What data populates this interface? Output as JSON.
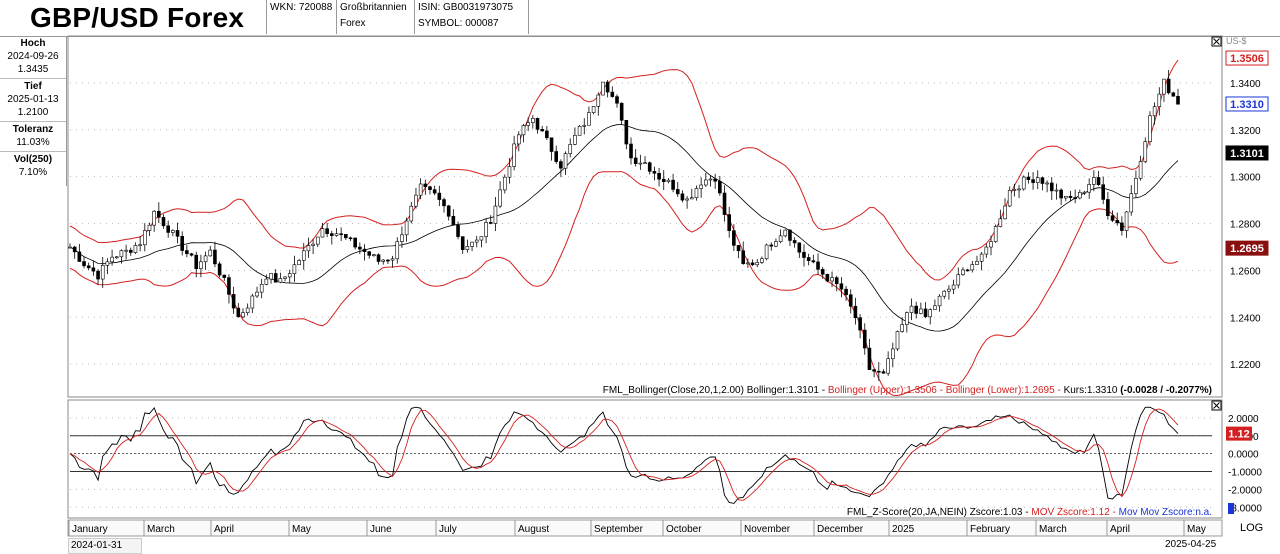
{
  "header": {
    "title": "GBP/USD Forex",
    "wkn": "WKN: 720088",
    "country": "Großbritannien",
    "type": "Forex",
    "isin": "ISIN: GB0031973075",
    "symbol": "SYMBOL: 000087"
  },
  "sidebar": {
    "hoch_label": "Hoch",
    "hoch_date": "2024-09-26",
    "hoch_value": "1.3435",
    "tief_label": "Tief",
    "tief_date": "2025-01-13",
    "tief_value": "1.2100",
    "toleranz_label": "Toleranz",
    "toleranz_value": "11.03%",
    "vol_label": "Vol(250)",
    "vol_value": "7.10%"
  },
  "main_legend": {
    "part1": "FML_Bollinger(Close,20,1,2.00) Bollinger:1.3101 -",
    "part2": "Bollinger (Upper):1.3506 -",
    "part3": "Bollinger (Lower):1.2695 -",
    "part4": "Kurs:1.3310 ",
    "part5": "(-0.0028 / -0.2077%)"
  },
  "sub_legend": {
    "part1": "FML_Z-Score(20,JA,NEIN) Zscore:1.03 -",
    "part2": "MOV Zscore:1.12 -",
    "part3": "Mov Mov Zscore:n.a."
  },
  "footer": {
    "start_date": "2024-01-31",
    "end_date": "2025-04-25",
    "log_label": "LOG"
  },
  "colors": {
    "candles": "#000000",
    "bands": "#d42020",
    "middle": "#000000",
    "blue_tag": "#1a35d8",
    "dark_red_tag": "#8a1010"
  },
  "chart_data": [
    {
      "type": "line",
      "title": "GBP/USD Forex",
      "x_axis_labels": [
        "January",
        "March",
        "April",
        "May",
        "June",
        "July",
        "August",
        "September",
        "October",
        "November",
        "December",
        "2025",
        "February",
        "March",
        "April",
        "May"
      ],
      "ytick_labels": [
        "1.3400",
        "1.3200",
        "1.3000",
        "1.2800",
        "1.2600",
        "1.2400",
        "1.2200"
      ],
      "ylim": [
        1.206,
        1.36
      ],
      "price_tags": [
        {
          "label": "1.3506",
          "value": 1.3506,
          "style": "red"
        },
        {
          "label": "1.3310",
          "value": 1.331,
          "style": "blue"
        },
        {
          "label": "1.3101",
          "value": 1.3101,
          "style": "black"
        },
        {
          "label": "1.2695",
          "value": 1.2695,
          "style": "darkred"
        }
      ],
      "close_anchors": [
        [
          0,
          1.27
        ],
        [
          3,
          1.263
        ],
        [
          6,
          1.258
        ],
        [
          9,
          1.266
        ],
        [
          12,
          1.268
        ],
        [
          15,
          1.272
        ],
        [
          18,
          1.285
        ],
        [
          21,
          1.278
        ],
        [
          24,
          1.27
        ],
        [
          27,
          1.262
        ],
        [
          30,
          1.268
        ],
        [
          33,
          1.255
        ],
        [
          36,
          1.24
        ],
        [
          39,
          1.248
        ],
        [
          42,
          1.258
        ],
        [
          45,
          1.255
        ],
        [
          48,
          1.262
        ],
        [
          51,
          1.27
        ],
        [
          54,
          1.278
        ],
        [
          57,
          1.276
        ],
        [
          60,
          1.272
        ],
        [
          63,
          1.268
        ],
        [
          66,
          1.264
        ],
        [
          69,
          1.266
        ],
        [
          72,
          1.282
        ],
        [
          75,
          1.295
        ],
        [
          78,
          1.292
        ],
        [
          81,
          1.285
        ],
        [
          84,
          1.27
        ],
        [
          87,
          1.272
        ],
        [
          90,
          1.282
        ],
        [
          93,
          1.3
        ],
        [
          96,
          1.318
        ],
        [
          99,
          1.325
        ],
        [
          102,
          1.315
        ],
        [
          105,
          1.305
        ],
        [
          108,
          1.317
        ],
        [
          111,
          1.326
        ],
        [
          114,
          1.342
        ],
        [
          117,
          1.33
        ],
        [
          120,
          1.308
        ],
        [
          123,
          1.306
        ],
        [
          126,
          1.3
        ],
        [
          129,
          1.296
        ],
        [
          132,
          1.29
        ],
        [
          135,
          1.298
        ],
        [
          138,
          1.3
        ],
        [
          141,
          1.276
        ],
        [
          144,
          1.262
        ],
        [
          147,
          1.264
        ],
        [
          150,
          1.272
        ],
        [
          153,
          1.278
        ],
        [
          156,
          1.268
        ],
        [
          159,
          1.262
        ],
        [
          162,
          1.257
        ],
        [
          165,
          1.252
        ],
        [
          168,
          1.24
        ],
        [
          171,
          1.218
        ],
        [
          174,
          1.215
        ],
        [
          177,
          1.232
        ],
        [
          180,
          1.245
        ],
        [
          183,
          1.24
        ],
        [
          186,
          1.248
        ],
        [
          189,
          1.254
        ],
        [
          192,
          1.262
        ],
        [
          195,
          1.265
        ],
        [
          198,
          1.278
        ],
        [
          201,
          1.294
        ],
        [
          204,
          1.298
        ],
        [
          207,
          1.3
        ],
        [
          210,
          1.295
        ],
        [
          213,
          1.29
        ],
        [
          216,
          1.292
        ],
        [
          219,
          1.3
        ],
        [
          222,
          1.285
        ],
        [
          225,
          1.278
        ],
        [
          228,
          1.3
        ],
        [
          231,
          1.325
        ],
        [
          234,
          1.34
        ],
        [
          237,
          1.332
        ]
      ],
      "n_bars": 238
    },
    {
      "type": "line",
      "title": "",
      "ytick_labels": [
        "2.0000",
        "1.0000",
        "0.0000",
        "-1.0000",
        "-2.0000",
        "-3.0000"
      ],
      "ylim": [
        -3.6,
        3.0
      ],
      "price_tags": [
        {
          "label": "1.12",
          "value": 1.12,
          "style": "red"
        }
      ],
      "reference_lines": [
        1,
        0,
        -1
      ]
    }
  ]
}
